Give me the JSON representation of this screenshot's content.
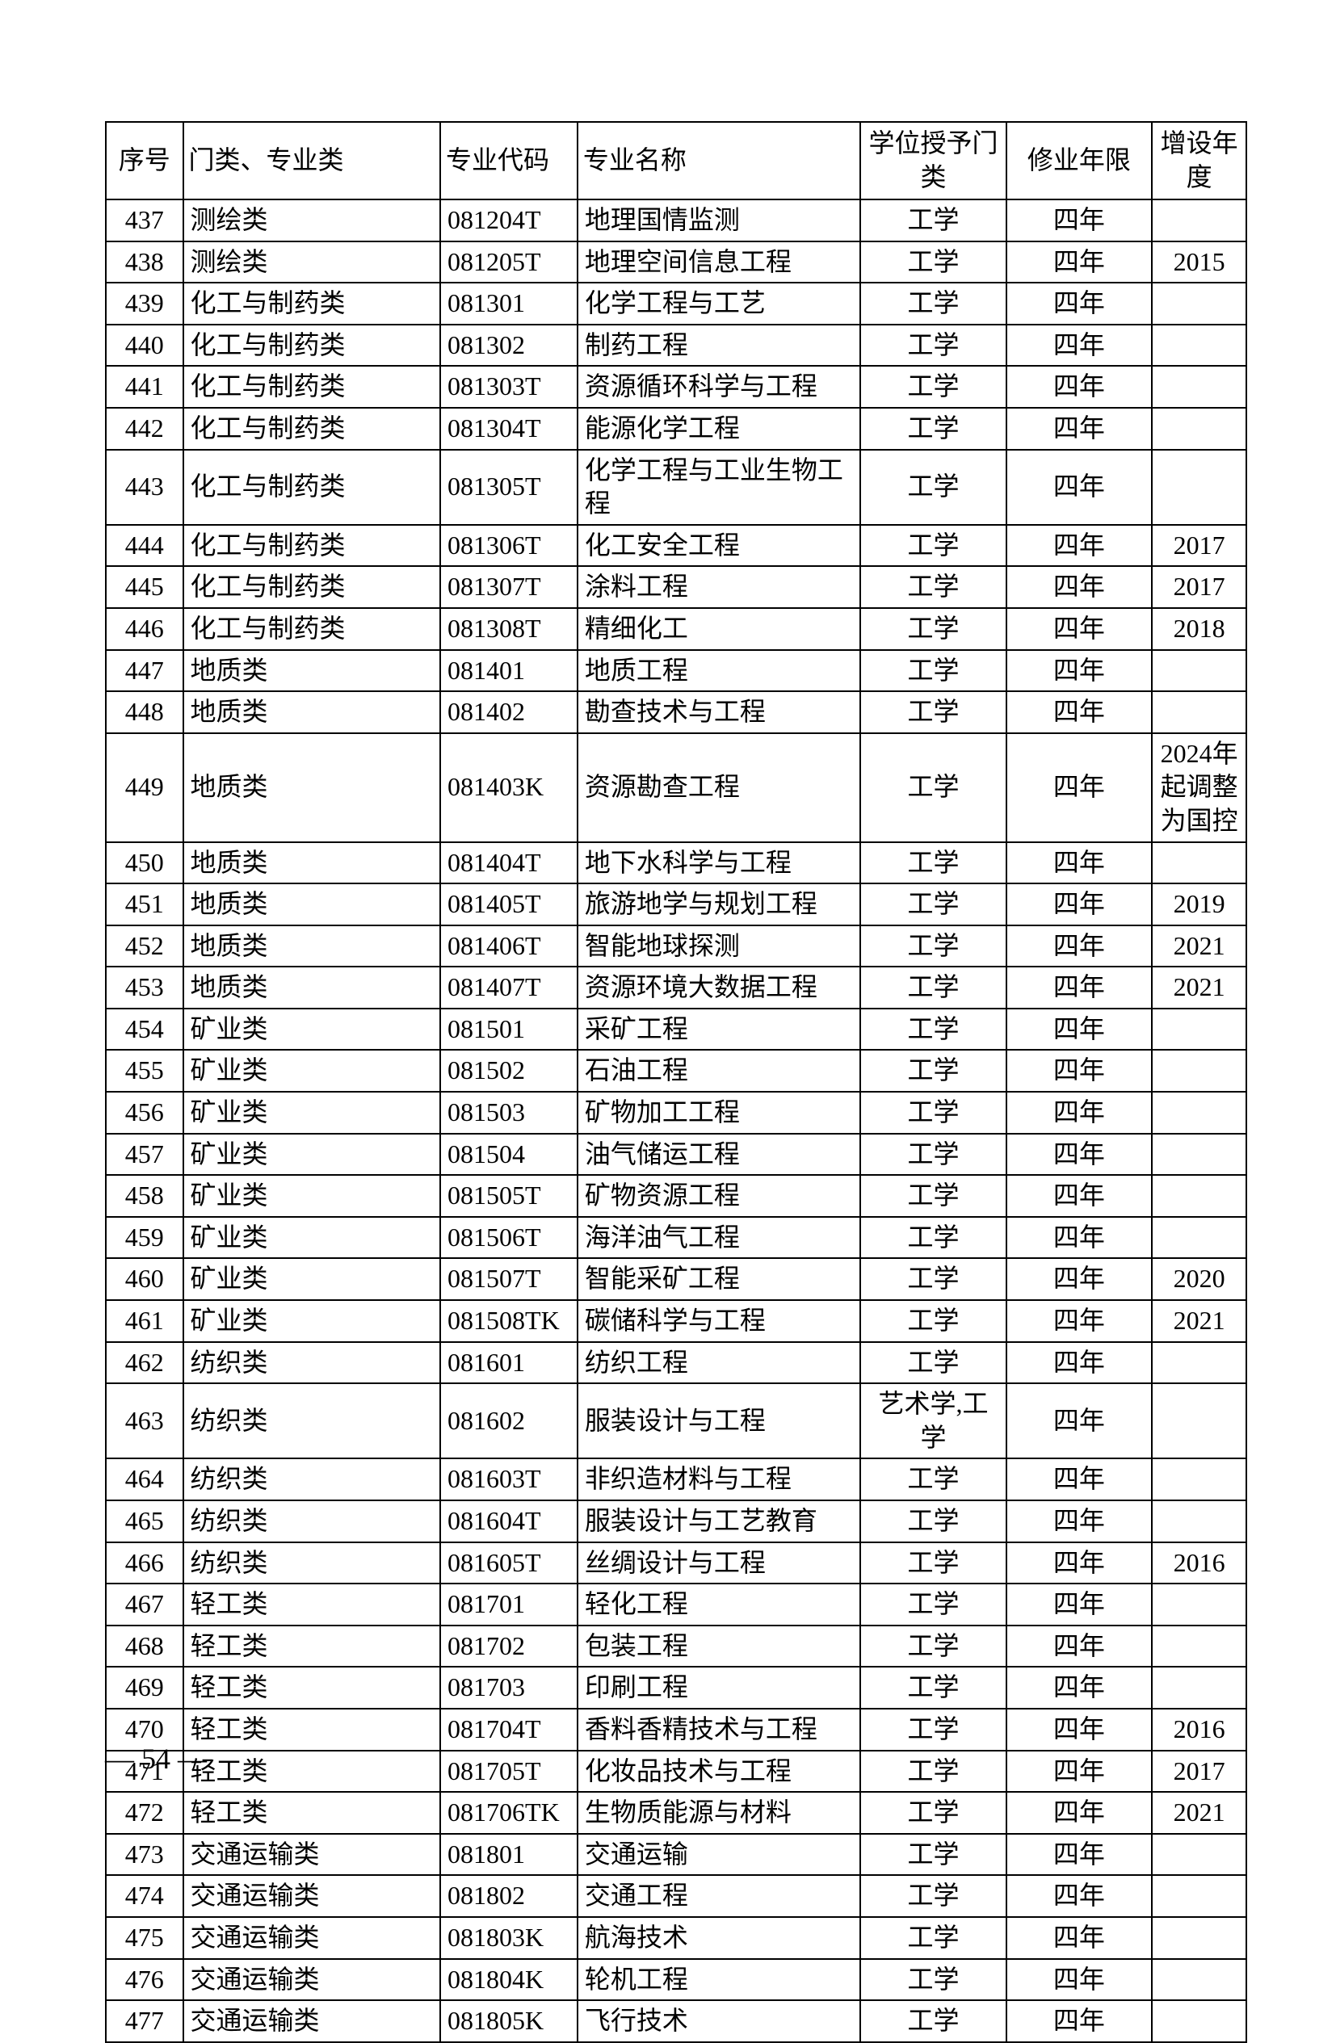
{
  "table": {
    "headers": {
      "seq": "序号",
      "cat": "门类、专业类",
      "code": "专业代码",
      "name": "专业名称",
      "degree": "学位授予门类",
      "years": "修业年限",
      "year": "增设年度"
    },
    "rows": [
      {
        "seq": "437",
        "cat": "测绘类",
        "code": "081204T",
        "name": "地理国情监测",
        "degree": "工学",
        "years": "四年",
        "year": ""
      },
      {
        "seq": "438",
        "cat": "测绘类",
        "code": "081205T",
        "name": "地理空间信息工程",
        "degree": "工学",
        "years": "四年",
        "year": "2015"
      },
      {
        "seq": "439",
        "cat": "化工与制药类",
        "code": "081301",
        "name": "化学工程与工艺",
        "degree": "工学",
        "years": "四年",
        "year": ""
      },
      {
        "seq": "440",
        "cat": "化工与制药类",
        "code": "081302",
        "name": "制药工程",
        "degree": "工学",
        "years": "四年",
        "year": ""
      },
      {
        "seq": "441",
        "cat": "化工与制药类",
        "code": "081303T",
        "name": "资源循环科学与工程",
        "degree": "工学",
        "years": "四年",
        "year": ""
      },
      {
        "seq": "442",
        "cat": "化工与制药类",
        "code": "081304T",
        "name": "能源化学工程",
        "degree": "工学",
        "years": "四年",
        "year": ""
      },
      {
        "seq": "443",
        "cat": "化工与制药类",
        "code": "081305T",
        "name": "化学工程与工业生物工程",
        "degree": "工学",
        "years": "四年",
        "year": ""
      },
      {
        "seq": "444",
        "cat": "化工与制药类",
        "code": "081306T",
        "name": "化工安全工程",
        "degree": "工学",
        "years": "四年",
        "year": "2017"
      },
      {
        "seq": "445",
        "cat": "化工与制药类",
        "code": "081307T",
        "name": "涂料工程",
        "degree": "工学",
        "years": "四年",
        "year": "2017"
      },
      {
        "seq": "446",
        "cat": "化工与制药类",
        "code": "081308T",
        "name": "精细化工",
        "degree": "工学",
        "years": "四年",
        "year": "2018"
      },
      {
        "seq": "447",
        "cat": "地质类",
        "code": "081401",
        "name": "地质工程",
        "degree": "工学",
        "years": "四年",
        "year": ""
      },
      {
        "seq": "448",
        "cat": "地质类",
        "code": "081402",
        "name": "勘查技术与工程",
        "degree": "工学",
        "years": "四年",
        "year": ""
      },
      {
        "seq": "449",
        "cat": "地质类",
        "code": "081403K",
        "name": "资源勘查工程",
        "degree": "工学",
        "years": "四年",
        "year": "2024年起调整为国控"
      },
      {
        "seq": "450",
        "cat": "地质类",
        "code": "081404T",
        "name": "地下水科学与工程",
        "degree": "工学",
        "years": "四年",
        "year": ""
      },
      {
        "seq": "451",
        "cat": "地质类",
        "code": "081405T",
        "name": "旅游地学与规划工程",
        "degree": "工学",
        "years": "四年",
        "year": "2019"
      },
      {
        "seq": "452",
        "cat": "地质类",
        "code": "081406T",
        "name": "智能地球探测",
        "degree": "工学",
        "years": "四年",
        "year": "2021"
      },
      {
        "seq": "453",
        "cat": "地质类",
        "code": "081407T",
        "name": "资源环境大数据工程",
        "degree": "工学",
        "years": "四年",
        "year": "2021"
      },
      {
        "seq": "454",
        "cat": "矿业类",
        "code": "081501",
        "name": "采矿工程",
        "degree": "工学",
        "years": "四年",
        "year": ""
      },
      {
        "seq": "455",
        "cat": "矿业类",
        "code": "081502",
        "name": "石油工程",
        "degree": "工学",
        "years": "四年",
        "year": ""
      },
      {
        "seq": "456",
        "cat": "矿业类",
        "code": "081503",
        "name": "矿物加工工程",
        "degree": "工学",
        "years": "四年",
        "year": ""
      },
      {
        "seq": "457",
        "cat": "矿业类",
        "code": "081504",
        "name": "油气储运工程",
        "degree": "工学",
        "years": "四年",
        "year": ""
      },
      {
        "seq": "458",
        "cat": "矿业类",
        "code": "081505T",
        "name": "矿物资源工程",
        "degree": "工学",
        "years": "四年",
        "year": ""
      },
      {
        "seq": "459",
        "cat": "矿业类",
        "code": "081506T",
        "name": "海洋油气工程",
        "degree": "工学",
        "years": "四年",
        "year": ""
      },
      {
        "seq": "460",
        "cat": "矿业类",
        "code": "081507T",
        "name": "智能采矿工程",
        "degree": "工学",
        "years": "四年",
        "year": "2020"
      },
      {
        "seq": "461",
        "cat": "矿业类",
        "code": "081508TK",
        "name": "碳储科学与工程",
        "degree": "工学",
        "years": "四年",
        "year": "2021"
      },
      {
        "seq": "462",
        "cat": "纺织类",
        "code": "081601",
        "name": "纺织工程",
        "degree": "工学",
        "years": "四年",
        "year": ""
      },
      {
        "seq": "463",
        "cat": "纺织类",
        "code": "081602",
        "name": "服装设计与工程",
        "degree": "艺术学,工学",
        "years": "四年",
        "year": ""
      },
      {
        "seq": "464",
        "cat": "纺织类",
        "code": "081603T",
        "name": "非织造材料与工程",
        "degree": "工学",
        "years": "四年",
        "year": ""
      },
      {
        "seq": "465",
        "cat": "纺织类",
        "code": "081604T",
        "name": "服装设计与工艺教育",
        "degree": "工学",
        "years": "四年",
        "year": ""
      },
      {
        "seq": "466",
        "cat": "纺织类",
        "code": "081605T",
        "name": "丝绸设计与工程",
        "degree": "工学",
        "years": "四年",
        "year": "2016"
      },
      {
        "seq": "467",
        "cat": "轻工类",
        "code": "081701",
        "name": "轻化工程",
        "degree": "工学",
        "years": "四年",
        "year": ""
      },
      {
        "seq": "468",
        "cat": "轻工类",
        "code": "081702",
        "name": "包装工程",
        "degree": "工学",
        "years": "四年",
        "year": ""
      },
      {
        "seq": "469",
        "cat": "轻工类",
        "code": "081703",
        "name": "印刷工程",
        "degree": "工学",
        "years": "四年",
        "year": ""
      },
      {
        "seq": "470",
        "cat": "轻工类",
        "code": "081704T",
        "name": "香料香精技术与工程",
        "degree": "工学",
        "years": "四年",
        "year": "2016"
      },
      {
        "seq": "471",
        "cat": "轻工类",
        "code": "081705T",
        "name": "化妆品技术与工程",
        "degree": "工学",
        "years": "四年",
        "year": "2017"
      },
      {
        "seq": "472",
        "cat": "轻工类",
        "code": "081706TK",
        "name": "生物质能源与材料",
        "degree": "工学",
        "years": "四年",
        "year": "2021"
      },
      {
        "seq": "473",
        "cat": "交通运输类",
        "code": "081801",
        "name": "交通运输",
        "degree": "工学",
        "years": "四年",
        "year": ""
      },
      {
        "seq": "474",
        "cat": "交通运输类",
        "code": "081802",
        "name": "交通工程",
        "degree": "工学",
        "years": "四年",
        "year": ""
      },
      {
        "seq": "475",
        "cat": "交通运输类",
        "code": "081803K",
        "name": "航海技术",
        "degree": "工学",
        "years": "四年",
        "year": ""
      },
      {
        "seq": "476",
        "cat": "交通运输类",
        "code": "081804K",
        "name": "轮机工程",
        "degree": "工学",
        "years": "四年",
        "year": ""
      },
      {
        "seq": "477",
        "cat": "交通运输类",
        "code": "081805K",
        "name": "飞行技术",
        "degree": "工学",
        "years": "四年",
        "year": ""
      }
    ]
  },
  "pageNumber": "— 54 —"
}
